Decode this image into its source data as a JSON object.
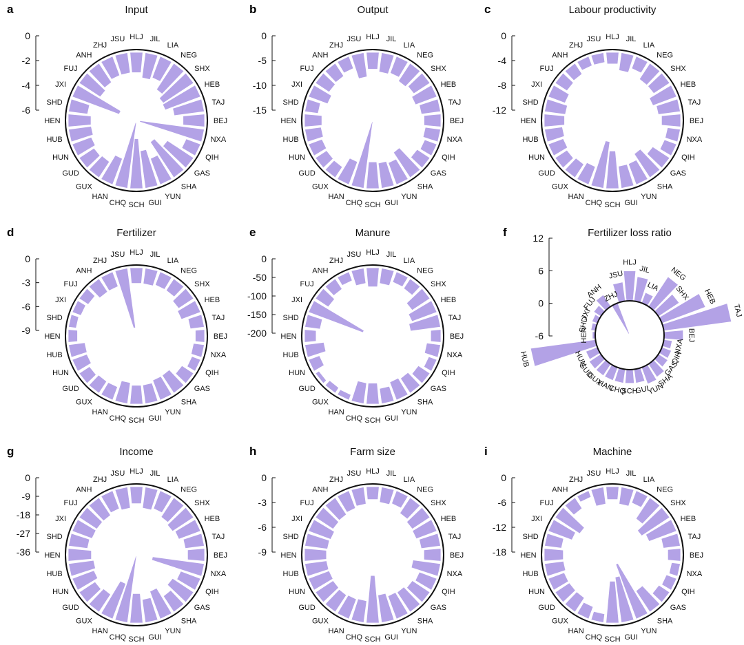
{
  "regions": [
    "HLJ",
    "JIL",
    "LIA",
    "NEG",
    "SHX",
    "HEB",
    "TAJ",
    "BEJ",
    "NXA",
    "QIH",
    "GAS",
    "SHA",
    "YUN",
    "GUI",
    "SCH",
    "CHQ",
    "HAN",
    "GUX",
    "GUD",
    "HUN",
    "HUB",
    "HEN",
    "SHD",
    "JXI",
    "FUJ",
    "ANH",
    "ZHJ",
    "JSU"
  ],
  "chart_data": [
    {
      "type": "radial-bar",
      "letter": "a",
      "title": "Input",
      "yticks": [
        "0",
        "-2",
        "-4",
        "-6"
      ],
      "ylim": [
        -6,
        0
      ],
      "values": [
        -1.6,
        -2.0,
        -1.8,
        -2.5,
        -2.9,
        -3.0,
        -2.4,
        -1.7,
        -5.2,
        -1.2,
        -2.5,
        -3.4,
        -2.2,
        -3.0,
        -4.0,
        -5.3,
        -2.2,
        -1.5,
        -1.4,
        -1.6,
        -1.8,
        -1.8,
        -1.5,
        -4.0,
        -2.0,
        -1.8,
        -1.6,
        -1.6
      ]
    },
    {
      "type": "radial-bar",
      "letter": "b",
      "title": "Output",
      "yticks": [
        "0",
        "-5",
        "-10",
        "-15"
      ],
      "ylim": [
        -15,
        0
      ],
      "values": [
        -3.3,
        -3.8,
        -3.5,
        -4.2,
        -3.8,
        -4.5,
        -3.8,
        -3.3,
        -3.0,
        -2.5,
        -3.0,
        -6.0,
        -4.6,
        -5.0,
        -5.3,
        -13.5,
        -4.8,
        -2.5,
        -2.6,
        -2.8,
        -3.2,
        -3.4,
        -2.6,
        -4.0,
        -3.2,
        -3.0,
        -2.5,
        -4.8
      ]
    },
    {
      "type": "radial-bar",
      "letter": "c",
      "title": "Labour productivity",
      "yticks": [
        "0",
        "-4",
        "-8",
        "-12"
      ],
      "ylim": [
        -12,
        0
      ],
      "values": [
        -1.8,
        -2.8,
        -2.0,
        -3.0,
        -3.0,
        -4.0,
        -3.5,
        -3.0,
        -2.0,
        -2.0,
        -3.2,
        -4.5,
        -3.5,
        -3.5,
        -6.0,
        -7.5,
        -3.0,
        -2.5,
        -2.2,
        -2.5,
        -2.8,
        -3.2,
        -3.3,
        -2.8,
        -2.2,
        -2.0,
        -1.5,
        -1.5
      ]
    },
    {
      "type": "radial-bar",
      "letter": "d",
      "title": "Fertilizer",
      "yticks": [
        "0",
        "-3",
        "-6",
        "-9"
      ],
      "ylim": [
        -9,
        0
      ],
      "values": [
        -1.9,
        -1.9,
        -1.7,
        -1.7,
        -2.2,
        -2.5,
        -1.7,
        -1.1,
        -1.3,
        -1.1,
        -1.7,
        -2.6,
        -2.6,
        -2.3,
        -2.3,
        -2.6,
        -1.7,
        -1.7,
        -1.5,
        -1.9,
        -2.0,
        -1.1,
        -0.9,
        -1.1,
        -1.3,
        -1.9,
        -1.9,
        -7.5
      ]
    },
    {
      "type": "radial-bar",
      "letter": "e",
      "title": "Manure",
      "yticks": [
        "0",
        "-50",
        "-100",
        "-150",
        "-200"
      ],
      "ylim": [
        -200,
        0
      ],
      "values": [
        -50,
        -40,
        -28,
        -30,
        -56,
        -70,
        -80,
        -26,
        -36,
        -22,
        -36,
        -46,
        -50,
        -40,
        -55,
        -55,
        -14,
        -16,
        -10,
        -30,
        -50,
        -30,
        -40,
        -155,
        -40,
        -32,
        -24,
        -40
      ]
    },
    {
      "type": "radial-bar-diverging",
      "letter": "f",
      "title": "Fertilizer loss ratio",
      "yticks": [
        "12",
        "6",
        "0",
        "-6"
      ],
      "ylim": [
        -6,
        12
      ],
      "values": [
        5.5,
        4.5,
        2.0,
        6.5,
        4.5,
        8.5,
        12.5,
        3.5,
        1.5,
        1.8,
        2.0,
        2.8,
        3.2,
        2.5,
        2.5,
        2.5,
        2.5,
        2.5,
        2.5,
        2.2,
        12.0,
        0.5,
        0.8,
        1.0,
        1.5,
        2.5,
        -6.0,
        3.5
      ]
    },
    {
      "type": "radial-bar",
      "letter": "g",
      "title": "Income",
      "yticks": [
        "0",
        "-9",
        "-18",
        "-27",
        "-36"
      ],
      "ylim": [
        -36,
        0
      ],
      "values": [
        -8,
        -10,
        -9,
        -11,
        -12,
        -11,
        -9,
        -8,
        -25,
        -10,
        -12,
        -9,
        -14,
        -11,
        -14,
        -33,
        -18,
        -10,
        -9,
        -11,
        -12,
        -11,
        -9,
        -10,
        -10,
        -10,
        -9,
        -10
      ]
    },
    {
      "type": "radial-bar",
      "letter": "h",
      "title": "Farm size",
      "yticks": [
        "0",
        "-3",
        "-6",
        "-9"
      ],
      "ylim": [
        -9,
        0
      ],
      "values": [
        -1.5,
        -1.8,
        -1.6,
        -2.2,
        -2.5,
        -2.6,
        -2.3,
        -2.0,
        -3.3,
        -2.2,
        -2.5,
        -2.8,
        -2.9,
        -3.3,
        -5.7,
        -2.6,
        -2.5,
        -2.4,
        -2.5,
        -2.6,
        -2.6,
        -2.6,
        -2.7,
        -2.8,
        -2.5,
        -2.4,
        -2.2,
        -2.0
      ]
    },
    {
      "type": "radial-bar",
      "letter": "i",
      "title": "Machine",
      "yticks": [
        "0",
        "-6",
        "-12",
        "-18"
      ],
      "ylim": [
        -18,
        0
      ],
      "values": [
        -3,
        -4,
        -3,
        -6,
        -8,
        -7,
        -4,
        -3,
        -2,
        -2.5,
        -3,
        -6,
        -14,
        -11,
        -10,
        -2,
        -3,
        -4,
        -4,
        -4,
        -4.5,
        -4.5,
        -4,
        -6,
        -7,
        -3,
        -1.5,
        -4
      ]
    }
  ]
}
